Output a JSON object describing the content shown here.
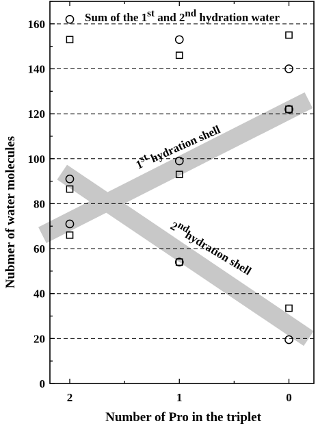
{
  "chart_data": {
    "type": "scatter",
    "x_categories": [
      2,
      1,
      0
    ],
    "xlabel": "Number of Pro in the triplet",
    "ylabel": "Nubmer of water molecules",
    "ylim": [
      0,
      170
    ],
    "yticks": [
      0,
      20,
      40,
      60,
      80,
      100,
      120,
      140,
      160
    ],
    "grid": "horizontal dashed",
    "series": [
      {
        "group": "Sum",
        "marker": "circle",
        "x": [
          2,
          1,
          0
        ],
        "y": [
          162,
          153,
          140
        ]
      },
      {
        "group": "Sum",
        "marker": "square",
        "x": [
          2,
          1,
          0
        ],
        "y": [
          153,
          146,
          155
        ]
      },
      {
        "group": "1st",
        "marker": "circle",
        "x": [
          2,
          1,
          0
        ],
        "y": [
          71,
          99,
          122
        ]
      },
      {
        "group": "1st",
        "marker": "square",
        "x": [
          2,
          1,
          0
        ],
        "y": [
          66,
          93,
          122
        ]
      },
      {
        "group": "2nd",
        "marker": "circle",
        "x": [
          2,
          1,
          0
        ],
        "y": [
          91,
          54,
          19.5
        ]
      },
      {
        "group": "2nd",
        "marker": "square",
        "x": [
          2,
          1,
          0
        ],
        "y": [
          86.5,
          54,
          33.5
        ]
      }
    ],
    "bands": [
      {
        "name": "first",
        "from": [
          2.25,
          66
        ],
        "to": [
          -0.18,
          126
        ]
      },
      {
        "name": "second",
        "from": [
          2.07,
          94
        ],
        "to": [
          -0.18,
          20
        ]
      }
    ],
    "annotations": {
      "sum": {
        "pre": "Sum of the 1",
        "sup1": "st",
        "mid": " and 2",
        "sup2": "nd",
        "post": " hydration water"
      },
      "first": {
        "num": "1",
        "sup": "st",
        "text": " hydration shell"
      },
      "second": {
        "num": "2",
        "sup": "nd",
        "text": "hydration shell"
      }
    },
    "colors": {
      "band": "#c8c8c8",
      "marker": "#000000",
      "grid": "#000000"
    }
  }
}
